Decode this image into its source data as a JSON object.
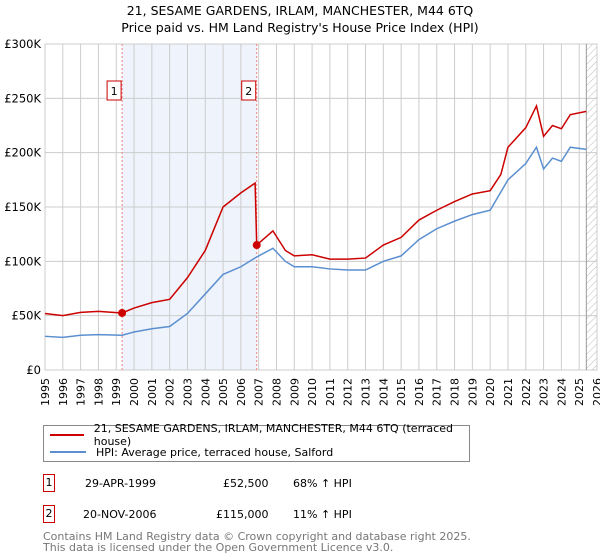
{
  "title": "21, SESAME GARDENS, IRLAM, MANCHESTER, M44 6TQ",
  "subtitle": "Price paid vs. HM Land Registry's House Price Index (HPI)",
  "chart_data": {
    "type": "line",
    "title": "21, SESAME GARDENS, IRLAM, MANCHESTER, M44 6TQ",
    "ylim": [
      0,
      300000
    ],
    "xlim": [
      1995,
      2026
    ],
    "yticks": [
      {
        "v": 0,
        "label": "£0"
      },
      {
        "v": 50000,
        "label": "£50K"
      },
      {
        "v": 100000,
        "label": "£100K"
      },
      {
        "v": 150000,
        "label": "£150K"
      },
      {
        "v": 200000,
        "label": "£200K"
      },
      {
        "v": 250000,
        "label": "£250K"
      },
      {
        "v": 300000,
        "label": "£300K"
      }
    ],
    "xticks": [
      "1995",
      "1996",
      "1997",
      "1998",
      "1999",
      "2000",
      "2001",
      "2002",
      "2003",
      "2004",
      "2005",
      "2006",
      "2007",
      "2008",
      "2009",
      "2010",
      "2011",
      "2012",
      "2013",
      "2014",
      "2015",
      "2016",
      "2017",
      "2018",
      "2019",
      "2020",
      "2021",
      "2022",
      "2023",
      "2024",
      "2025",
      "2026"
    ],
    "grid": true,
    "shaded_period": [
      1999.33,
      2006.89
    ],
    "forecast_hatch_from": 2025.4,
    "series": [
      {
        "name": "21, SESAME GARDENS, IRLAM, MANCHESTER, M44 6TQ (terraced house)",
        "color": "#cc0000",
        "x": [
          1995,
          1996,
          1997,
          1998,
          1999.33,
          2000,
          2001,
          2002,
          2003,
          2004,
          2005,
          2006,
          2006.8,
          2006.89,
          2007.8,
          2008.5,
          2009,
          2010,
          2011,
          2012,
          2013,
          2014,
          2015,
          2016,
          2017,
          2018,
          2019,
          2020,
          2020.6,
          2021,
          2022,
          2022.6,
          2023,
          2023.5,
          2024,
          2024.5,
          2025.4
        ],
        "y": [
          52000,
          50000,
          53000,
          54000,
          52500,
          57000,
          62000,
          65000,
          85000,
          110000,
          150000,
          163000,
          172000,
          115000,
          128000,
          110000,
          105000,
          106000,
          102000,
          102000,
          103000,
          115000,
          122000,
          138000,
          147000,
          155000,
          162000,
          165000,
          180000,
          205000,
          223000,
          243000,
          215000,
          225000,
          222000,
          235000,
          238000
        ]
      },
      {
        "name": "HPI: Average price, terraced house, Salford",
        "color": "#5b8fd0",
        "x": [
          1995,
          1996,
          1997,
          1998,
          1999.33,
          2000,
          2001,
          2002,
          2003,
          2004,
          2005,
          2006,
          2006.89,
          2007.8,
          2008.5,
          2009,
          2010,
          2011,
          2012,
          2013,
          2014,
          2015,
          2016,
          2017,
          2018,
          2019,
          2020,
          2021,
          2022,
          2022.6,
          2023,
          2023.5,
          2024,
          2024.5,
          2025.4
        ],
        "y": [
          31000,
          30000,
          32000,
          32500,
          32000,
          35000,
          38000,
          40000,
          52000,
          70000,
          88000,
          95000,
          104000,
          112000,
          100000,
          95000,
          95000,
          93000,
          92000,
          92000,
          100000,
          105000,
          120000,
          130000,
          137000,
          143000,
          147000,
          175000,
          190000,
          205000,
          185000,
          195000,
          192000,
          205000,
          203000
        ]
      }
    ],
    "markers": [
      {
        "label": "1",
        "x": 1999.33,
        "y": 52500
      },
      {
        "label": "2",
        "x": 2006.89,
        "y": 115000
      }
    ]
  },
  "legend": {
    "property": "21, SESAME GARDENS, IRLAM, MANCHESTER, M44 6TQ (terraced house)",
    "hpi": "HPI: Average price, terraced house, Salford"
  },
  "transactions": [
    {
      "num": "1",
      "date": "29-APR-1999",
      "price": "£52,500",
      "hpi": "68% ↑ HPI"
    },
    {
      "num": "2",
      "date": "20-NOV-2006",
      "price": "£115,000",
      "hpi": "11% ↑ HPI"
    }
  ],
  "footer": [
    "Contains HM Land Registry data © Crown copyright and database right 2025.",
    "This data is licensed under the Open Government Licence v3.0."
  ]
}
